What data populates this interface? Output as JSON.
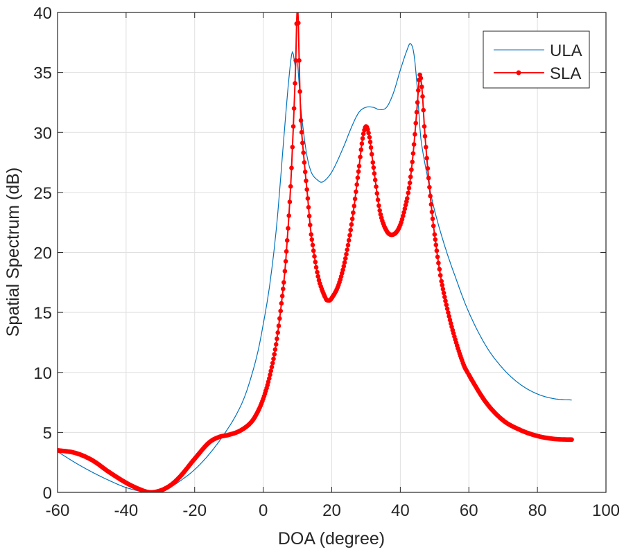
{
  "chart_data": {
    "type": "line",
    "title": "",
    "xlabel": "DOA (degree)",
    "ylabel": "Spatial Spectrum (dB)",
    "xlim": [
      -60,
      100
    ],
    "ylim": [
      0,
      40
    ],
    "xticks": [
      "-60",
      "-40",
      "-20",
      "0",
      "20",
      "40",
      "60",
      "80",
      "100"
    ],
    "yticks": [
      "0",
      "5",
      "10",
      "15",
      "20",
      "25",
      "30",
      "35",
      "40"
    ],
    "grid": true,
    "legend_position": "top-right",
    "series": [
      {
        "name": "ULA",
        "color": "#0072BD",
        "marker": "none",
        "x": [
          -60,
          -55,
          -50,
          -45,
          -40,
          -35,
          -32,
          -28,
          -24,
          -20,
          -16,
          -12,
          -8,
          -5,
          -2,
          0,
          2,
          4,
          6,
          7.5,
          8.5,
          9.3,
          10,
          11,
          12.5,
          14,
          16,
          17.5,
          20,
          23,
          26,
          28,
          30,
          32,
          34,
          36,
          38,
          40,
          42,
          43,
          44,
          45,
          46,
          48,
          50,
          53,
          56,
          60,
          65,
          70,
          75,
          80,
          85,
          90
        ],
        "y": [
          3.4,
          2.5,
          1.7,
          1.0,
          0.4,
          0.05,
          0.0,
          0.3,
          1.0,
          1.9,
          3.1,
          4.6,
          6.4,
          8.3,
          11.2,
          14.0,
          17.5,
          22.5,
          29.5,
          34.5,
          36.7,
          35.6,
          35.8,
          32,
          28.5,
          26.7,
          26.0,
          25.9,
          26.7,
          28.5,
          30.6,
          31.7,
          32.1,
          32.1,
          31.9,
          32.1,
          33.3,
          35.2,
          36.9,
          37.4,
          36.5,
          33.5,
          29.5,
          26.2,
          23.5,
          20.5,
          18.0,
          15.0,
          12.2,
          10.3,
          9.0,
          8.2,
          7.8,
          7.7
        ]
      },
      {
        "name": "SLA",
        "color": "#FF0000",
        "marker": "dot",
        "x": [
          -60,
          -55,
          -50,
          -45,
          -40,
          -36,
          -33,
          -30,
          -27,
          -24,
          -20,
          -16,
          -13,
          -10,
          -7,
          -4,
          -2,
          0,
          2,
          4,
          6,
          7,
          8,
          9,
          9.5,
          10,
          10.5,
          11,
          12,
          13,
          14,
          16,
          18,
          19,
          20,
          22,
          24,
          26,
          28,
          29,
          30,
          31,
          32,
          34,
          36,
          38,
          40,
          42,
          43,
          44,
          45,
          45.7,
          46.5,
          47,
          48,
          49,
          50,
          52,
          55,
          58,
          60,
          65,
          70,
          75,
          80,
          85,
          90
        ],
        "y": [
          3.5,
          3.3,
          2.7,
          1.7,
          0.8,
          0.25,
          0.0,
          0.15,
          0.6,
          1.4,
          2.8,
          4.1,
          4.6,
          4.8,
          5.1,
          5.7,
          6.5,
          7.8,
          9.8,
          12.8,
          17.5,
          21,
          25.5,
          32,
          36,
          41,
          36,
          31,
          27.5,
          24.5,
          21.5,
          18.0,
          16.3,
          16.0,
          16.2,
          17.3,
          19.5,
          22.8,
          27.2,
          29.5,
          30.5,
          29.6,
          27.5,
          23.5,
          21.8,
          21.5,
          22.3,
          24.5,
          26.3,
          29,
          32.5,
          34.8,
          33,
          30.5,
          27,
          24,
          21.5,
          17.6,
          13.8,
          11.0,
          9.8,
          7.5,
          6.0,
          5.2,
          4.7,
          4.45,
          4.4
        ]
      }
    ]
  }
}
